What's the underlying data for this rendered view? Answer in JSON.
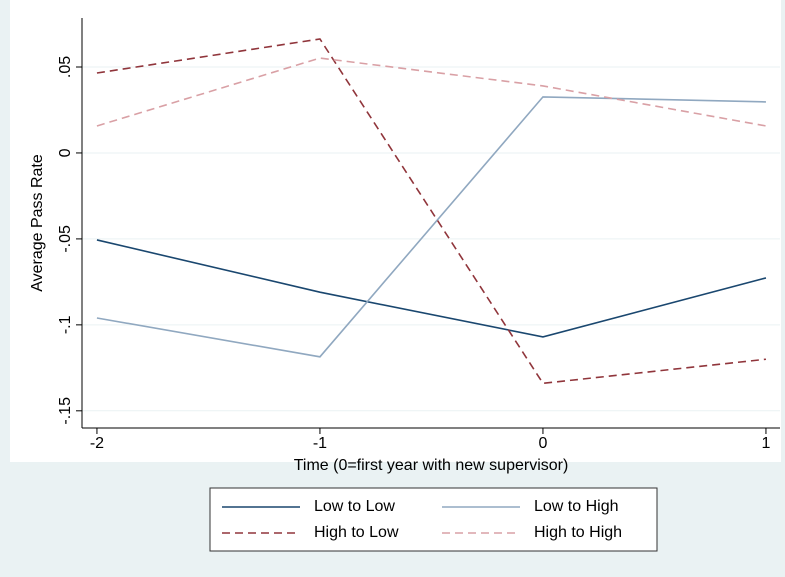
{
  "chart_data": {
    "type": "line",
    "xlabel": "Time (0=first year with new supervisor)",
    "ylabel": "Average Pass Rate",
    "x": [
      -2,
      -1,
      0,
      1
    ],
    "series": [
      {
        "name": "Low to Low",
        "color": "#1a476f",
        "dash": "solid",
        "values": [
          -0.0506,
          -0.081,
          -0.107,
          -0.0727
        ]
      },
      {
        "name": "Low to High",
        "color": "#90a8c0",
        "dash": "solid",
        "values": [
          -0.096,
          -0.1186,
          0.0326,
          0.0297
        ]
      },
      {
        "name": "High to Low",
        "color": "#90353b",
        "dash": "dashed",
        "values": [
          0.0465,
          0.0663,
          -0.134,
          -0.12
        ]
      },
      {
        "name": "High to High",
        "color": "#d9a0a5",
        "dash": "dashed",
        "values": [
          0.0157,
          0.0552,
          0.039,
          0.0157
        ]
      }
    ],
    "xlim": [
      -2.067,
      1.063
    ],
    "xticks": [
      -2,
      -1,
      0,
      1
    ],
    "ylim": [
      -0.16,
      0.0785
    ],
    "yticks": [
      {
        "value": -0.15,
        "label": "-.15"
      },
      {
        "value": -0.1,
        "label": "-.1"
      },
      {
        "value": -0.05,
        "label": "-.05"
      },
      0,
      {
        "value": 0.05,
        "label": ".05"
      }
    ],
    "grid": true,
    "legend": "bottom"
  }
}
